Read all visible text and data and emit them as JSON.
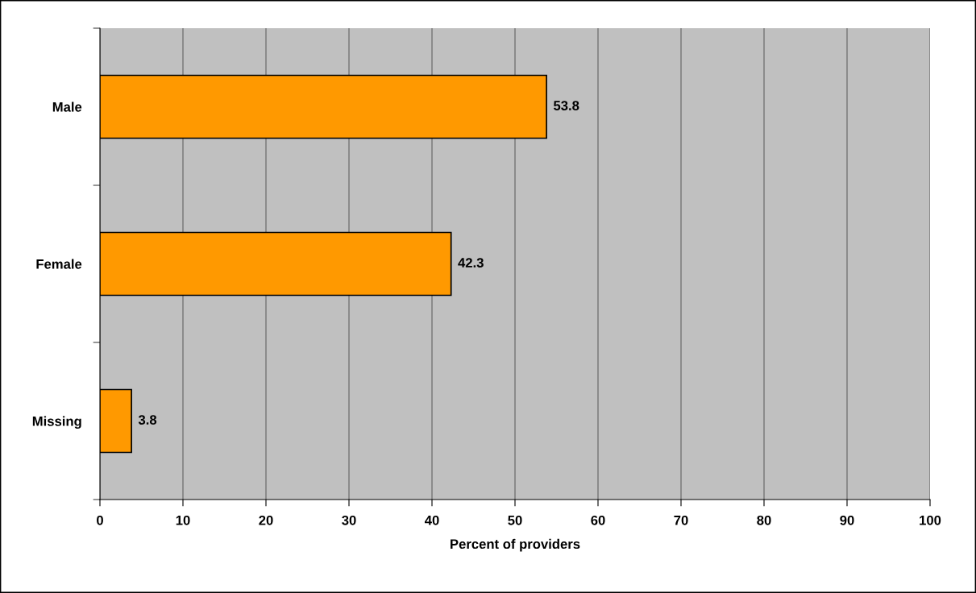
{
  "chart_data": {
    "type": "bar",
    "orientation": "horizontal",
    "categories": [
      "Male",
      "Female",
      "Missing"
    ],
    "values": [
      53.8,
      42.3,
      3.8
    ],
    "color": "#ff9900",
    "data_labels": true,
    "xlabel": "Percent of providers",
    "xlim": [
      0,
      100
    ],
    "xticks": [
      0,
      10,
      20,
      30,
      40,
      50,
      60,
      70,
      80,
      90,
      100
    ],
    "grid": "x",
    "legend": false
  }
}
